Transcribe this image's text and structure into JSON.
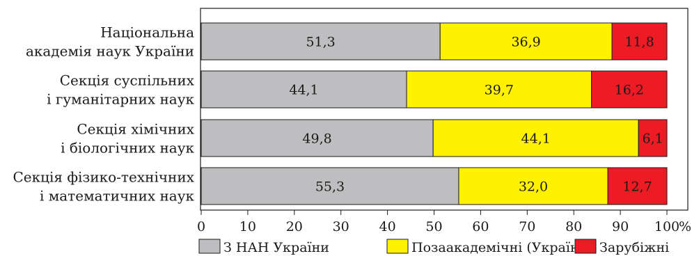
{
  "chart_data": {
    "type": "bar",
    "orientation": "horizontal",
    "stacked": true,
    "categories": [
      [
        "Національна",
        "академія наук України"
      ],
      [
        "Секція суспільних",
        "і гуманітарних наук"
      ],
      [
        "Секція хімічних",
        "і біологічних наук"
      ],
      [
        "Секція фізико-технічних",
        "і математичних наук"
      ]
    ],
    "series": [
      {
        "name": "З НАН України",
        "color": "#bebec0",
        "values": [
          51.3,
          44.1,
          49.8,
          55.3
        ],
        "labels": [
          "51,3",
          "44,1",
          "49,8",
          "55,3"
        ]
      },
      {
        "name": "Позаакадемічні (Україна)",
        "color": "#fff200",
        "values": [
          36.9,
          39.7,
          44.1,
          32.0
        ],
        "labels": [
          "36,9",
          "39,7",
          "44,1",
          "32,0"
        ]
      },
      {
        "name": "Зарубіжні",
        "color": "#ed1c24",
        "values": [
          11.8,
          16.2,
          6.1,
          12.7
        ],
        "labels": [
          "11,8",
          "16,2",
          "6,1",
          "12,7"
        ]
      }
    ],
    "xlim": [
      0,
      100
    ],
    "x_ticks": [
      "0",
      "10",
      "20",
      "30",
      "40",
      "50",
      "60",
      "70",
      "80",
      "90",
      "100"
    ],
    "x_unit": "%",
    "grid": false,
    "legend_position": "bottom"
  }
}
